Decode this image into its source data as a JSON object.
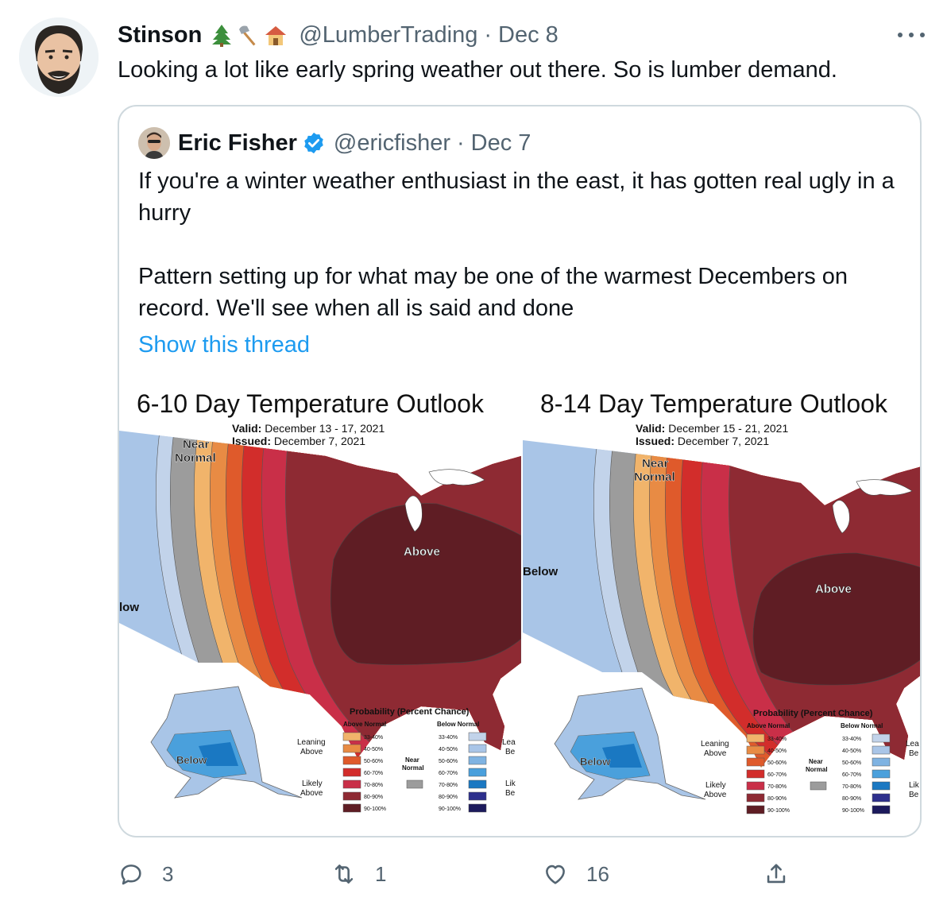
{
  "tweet": {
    "author_name": "Stinson",
    "author_emoji": [
      "evergreen-tree-icon",
      "axe-icon",
      "house-icon"
    ],
    "handle": "@LumberTrading",
    "separator": "·",
    "date": "Dec 8",
    "text": "Looking a lot like early spring weather out there. So is lumber demand."
  },
  "quoted": {
    "author_name": "Eric Fisher",
    "verified": true,
    "handle": "@ericfisher",
    "separator": "·",
    "date": "Dec 7",
    "text_p1": "If you're a winter weather enthusiast in the east, it has gotten real ugly in a hurry",
    "text_p2": "Pattern setting up for what may be one of the warmest Decembers on record. We'll see when all is said and done",
    "show_thread": "Show this thread"
  },
  "maps": [
    {
      "title": "6-10 Day Temperature Outlook",
      "valid_label": "Valid:",
      "valid": "December 13 - 17, 2021",
      "issued_label": "Issued:",
      "issued": "December 7, 2021",
      "label_near": "Near",
      "label_normal": "Normal",
      "label_above": "Above",
      "label_below_west": "low",
      "label_below_alaska": "Below"
    },
    {
      "title": "8-14 Day Temperature Outlook",
      "valid_label": "Valid:",
      "valid": "December 15 - 21, 2021",
      "issued_label": "Issued:",
      "issued": "December 7, 2021",
      "label_near": "Near",
      "label_normal": "Normal",
      "label_above": "Above",
      "label_below_west": "Below",
      "label_below_alaska": "Below"
    }
  ],
  "legend": {
    "title": "Probability (Percent Chance)",
    "above_header": "Above Normal",
    "below_header": "Below Normal",
    "leaning": [
      "Leaning",
      "Above"
    ],
    "likely": [
      "Likely",
      "Above"
    ],
    "near": [
      "Near",
      "Normal"
    ],
    "leaning_below_cut": [
      "Lea",
      "Be"
    ],
    "likely_below_cut": [
      "Lik",
      "Be"
    ],
    "bins": [
      "33-40%",
      "40-50%",
      "50-60%",
      "60-70%",
      "70-80%",
      "80-90%",
      "90-100%"
    ],
    "above_colors": [
      "#f1b46b",
      "#e88b44",
      "#df5a2b",
      "#d22d2b",
      "#c92f48",
      "#8e2a33",
      "#5f1d24"
    ],
    "below_colors": [
      "#c2d3ea",
      "#a9c5e7",
      "#7fb3e2",
      "#4aa0dc",
      "#1a78c2",
      "#2d2f8c",
      "#1c1a5c"
    ],
    "near_color": "#9c9c9c"
  },
  "actions": {
    "reply_count": "3",
    "retweet_count": "1",
    "like_count": "16"
  }
}
